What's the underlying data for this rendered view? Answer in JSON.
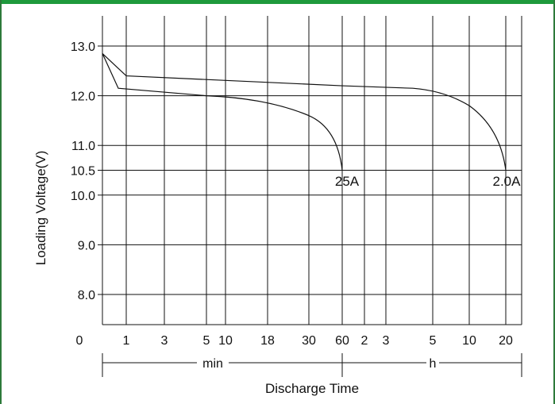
{
  "chart_data": {
    "type": "line",
    "title": "",
    "ylabel": "Loading Voltage(V)",
    "xlabel": "Discharge Time",
    "ylim": [
      7.0,
      13.5
    ],
    "y_ticks": [
      "13.0",
      "12.0",
      "11.0",
      "10.5",
      "10.0",
      "9.0",
      "8.0"
    ],
    "y_tick_values": [
      13.0,
      12.0,
      11.0,
      10.5,
      10.0,
      9.0,
      8.0
    ],
    "origin_label": "0",
    "x_ticks_min": [
      "1",
      "3",
      "5",
      "10",
      "18",
      "30",
      "60"
    ],
    "x_ticks_h": [
      "2",
      "3",
      "5",
      "10",
      "20"
    ],
    "x_unit_min": "min",
    "x_unit_h": "h",
    "grid": true,
    "series": [
      {
        "name": "25A",
        "points": [
          {
            "t": "0 min",
            "v": 12.85
          },
          {
            "t": "0.6 min",
            "v": 12.15
          },
          {
            "t": "5 min",
            "v": 12.0
          },
          {
            "t": "10 min",
            "v": 11.95
          },
          {
            "t": "30 min",
            "v": 11.6
          },
          {
            "t": "60 min",
            "v": 10.5
          }
        ]
      },
      {
        "name": "2.0A",
        "points": [
          {
            "t": "0 min",
            "v": 12.85
          },
          {
            "t": "1 min",
            "v": 12.4
          },
          {
            "t": "60 min",
            "v": 12.2
          },
          {
            "t": "5 h",
            "v": 12.1
          },
          {
            "t": "10 h",
            "v": 11.8
          },
          {
            "t": "20 h",
            "v": 10.5
          }
        ]
      }
    ]
  }
}
